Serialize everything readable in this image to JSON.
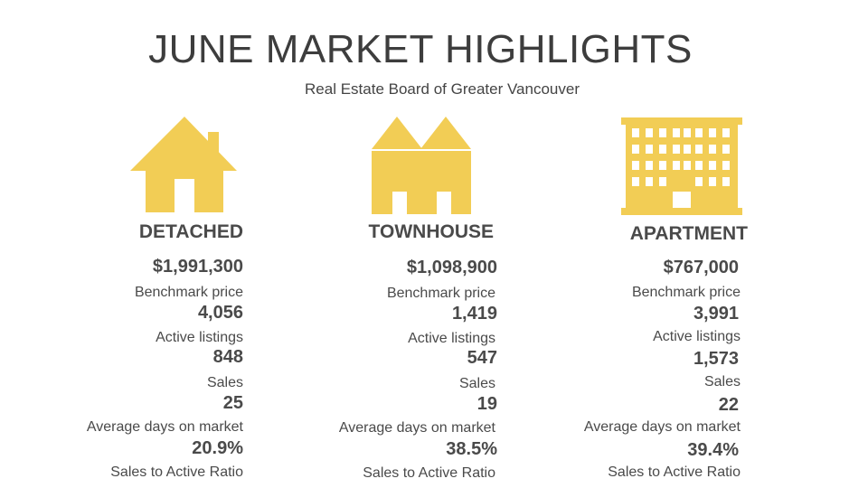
{
  "header": {
    "title": "JUNE MARKET HIGHLIGHTS",
    "subtitle": "Real Estate Board of Greater Vancouver"
  },
  "colors": {
    "icon": "#f2cd55",
    "text": "#4a4a4a"
  },
  "categories": [
    {
      "name": "DETACHED",
      "icon": "house-icon",
      "stats": [
        {
          "value": "$1,991,300",
          "label": "Benchmark price"
        },
        {
          "value": "4,056",
          "label": "Active listings"
        },
        {
          "value": "848",
          "label": "Sales"
        },
        {
          "value": "25",
          "label": "Average days on market"
        },
        {
          "value": "20.9%",
          "label": "Sales to Active Ratio"
        }
      ]
    },
    {
      "name": "TOWNHOUSE",
      "icon": "townhouse-icon",
      "stats": [
        {
          "value": "$1,098,900",
          "label": "Benchmark price"
        },
        {
          "value": "1,419",
          "label": "Active listings"
        },
        {
          "value": "547",
          "label": "Sales"
        },
        {
          "value": "19",
          "label": "Average days on market"
        },
        {
          "value": "38.5%",
          "label": "Sales to Active Ratio"
        }
      ]
    },
    {
      "name": "APARTMENT",
      "icon": "apartment-building-icon",
      "stats": [
        {
          "value": "$767,000",
          "label": "Benchmark price"
        },
        {
          "value": "3,991",
          "label": "Active listings"
        },
        {
          "value": "1,573",
          "label": "Sales"
        },
        {
          "value": "22",
          "label": "Average days on market"
        },
        {
          "value": "39.4%",
          "label": "Sales to Active Ratio"
        }
      ]
    }
  ]
}
